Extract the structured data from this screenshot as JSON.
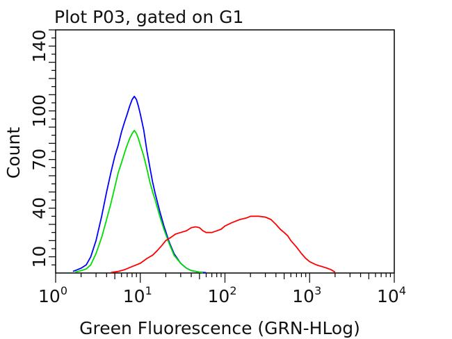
{
  "chart_data": {
    "type": "line",
    "title": "Plot P03, gated on G1",
    "xlabel": "Green Fluorescence (GRN-HLog)",
    "ylabel": "Count",
    "x_scale": "log",
    "xlim": [
      1,
      10000
    ],
    "ylim": [
      0,
      150
    ],
    "x_ticks": [
      {
        "value": 1,
        "base": "10",
        "exp": "0"
      },
      {
        "value": 10,
        "base": "10",
        "exp": "1"
      },
      {
        "value": 100,
        "base": "10",
        "exp": "2"
      },
      {
        "value": 1000,
        "base": "10",
        "exp": "3"
      },
      {
        "value": 10000,
        "base": "10",
        "exp": "4"
      }
    ],
    "y_ticks": [
      {
        "value": 10,
        "label": "10"
      },
      {
        "value": 40,
        "label": "40"
      },
      {
        "value": 70,
        "label": "70"
      },
      {
        "value": 100,
        "label": "100"
      },
      {
        "value": 140,
        "label": "140"
      }
    ],
    "grid": false,
    "legend": "none",
    "series": [
      {
        "color": "#0000ff",
        "points": [
          [
            1.6,
            1
          ],
          [
            1.8,
            2
          ],
          [
            2.0,
            3
          ],
          [
            2.3,
            5
          ],
          [
            2.6,
            10
          ],
          [
            3.0,
            20
          ],
          [
            3.5,
            35
          ],
          [
            4.0,
            50
          ],
          [
            4.5,
            62
          ],
          [
            5.0,
            72
          ],
          [
            5.5,
            79
          ],
          [
            6.0,
            87
          ],
          [
            6.5,
            93
          ],
          [
            7.0,
            98
          ],
          [
            7.5,
            103
          ],
          [
            8.0,
            107
          ],
          [
            8.5,
            109
          ],
          [
            9.0,
            107
          ],
          [
            9.5,
            103
          ],
          [
            10.0,
            98
          ],
          [
            11.0,
            88
          ],
          [
            12.0,
            75
          ],
          [
            13.0,
            65
          ],
          [
            14.0,
            56
          ],
          [
            15.0,
            49
          ],
          [
            17.0,
            38
          ],
          [
            19.0,
            29
          ],
          [
            22.0,
            19
          ],
          [
            25.0,
            12
          ],
          [
            30.0,
            6
          ],
          [
            35.0,
            3
          ],
          [
            40.0,
            1.5
          ],
          [
            50.0,
            0.5
          ],
          [
            60.0,
            0.2
          ]
        ]
      },
      {
        "color": "#00dd00",
        "points": [
          [
            1.7,
            0.5
          ],
          [
            2.0,
            1.5
          ],
          [
            2.3,
            2.5
          ],
          [
            2.6,
            5
          ],
          [
            3.0,
            12
          ],
          [
            3.5,
            22
          ],
          [
            4.0,
            33
          ],
          [
            4.5,
            43
          ],
          [
            5.0,
            53
          ],
          [
            5.5,
            62
          ],
          [
            6.0,
            68
          ],
          [
            6.5,
            74
          ],
          [
            7.0,
            79
          ],
          [
            7.5,
            83
          ],
          [
            8.0,
            86
          ],
          [
            8.5,
            88
          ],
          [
            9.0,
            86
          ],
          [
            9.5,
            83
          ],
          [
            10.0,
            79
          ],
          [
            11.0,
            72
          ],
          [
            12.0,
            64
          ],
          [
            13.0,
            56
          ],
          [
            14.0,
            50
          ],
          [
            15.0,
            45
          ],
          [
            17.0,
            35
          ],
          [
            19.0,
            27
          ],
          [
            22.0,
            18
          ],
          [
            25.0,
            11
          ],
          [
            30.0,
            6
          ],
          [
            35.0,
            3
          ],
          [
            40.0,
            1.5
          ],
          [
            50.0,
            0.5
          ],
          [
            55.0,
            0.2
          ]
        ]
      },
      {
        "color": "#ff0000",
        "points": [
          [
            4.5,
            0.3
          ],
          [
            5.5,
            1
          ],
          [
            6.5,
            2
          ],
          [
            8.0,
            4
          ],
          [
            10.0,
            6
          ],
          [
            12.0,
            9
          ],
          [
            14.0,
            11
          ],
          [
            16.0,
            14
          ],
          [
            18.0,
            17
          ],
          [
            20.0,
            20
          ],
          [
            23.0,
            22
          ],
          [
            26.0,
            24
          ],
          [
            30.0,
            25
          ],
          [
            35.0,
            26
          ],
          [
            40.0,
            28
          ],
          [
            45.0,
            28.5
          ],
          [
            50.0,
            28
          ],
          [
            55.0,
            26
          ],
          [
            60.0,
            25
          ],
          [
            70.0,
            25
          ],
          [
            80.0,
            26
          ],
          [
            90.0,
            27
          ],
          [
            100.0,
            29
          ],
          [
            120.0,
            31
          ],
          [
            150.0,
            33
          ],
          [
            180.0,
            34
          ],
          [
            200.0,
            35
          ],
          [
            250.0,
            35
          ],
          [
            300.0,
            34.5
          ],
          [
            350.0,
            33
          ],
          [
            400.0,
            30
          ],
          [
            450.0,
            27
          ],
          [
            500.0,
            25
          ],
          [
            550.0,
            23
          ],
          [
            600.0,
            20
          ],
          [
            700.0,
            16
          ],
          [
            800.0,
            12
          ],
          [
            900.0,
            9
          ],
          [
            1000.0,
            7
          ],
          [
            1200.0,
            5
          ],
          [
            1400.0,
            4
          ],
          [
            1600.0,
            3
          ],
          [
            1800.0,
            2
          ],
          [
            2000.0,
            0.5
          ]
        ]
      }
    ]
  }
}
